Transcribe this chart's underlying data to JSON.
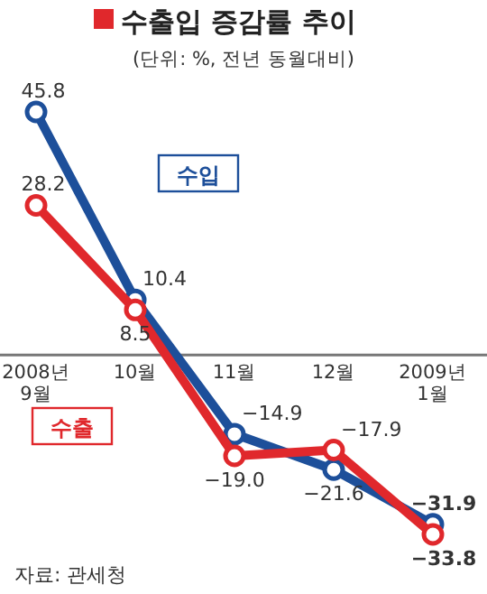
{
  "chart_data": {
    "type": "line",
    "title": "수출입 증감률 추이",
    "subtitle": "(단위: %, 전년 동월대비)",
    "annotations": [
      "자료: 관세청"
    ],
    "categories": [
      "2008년\n9월",
      "10월",
      "11월",
      "12월",
      "2009년\n1월"
    ],
    "series": [
      {
        "name": "수입",
        "color": "#1d4f9a",
        "values": [
          45.8,
          10.4,
          -14.9,
          -21.6,
          -31.9
        ],
        "value_labels": [
          "45.8",
          "10.4",
          "−14.9",
          "−21.6",
          "−31.9"
        ]
      },
      {
        "name": "수출",
        "color": "#e0282c",
        "values": [
          28.2,
          8.5,
          -19.0,
          -17.9,
          -33.8
        ],
        "value_labels": [
          "28.2",
          "8.5",
          "−19.0",
          "−17.9",
          "−33.8"
        ]
      }
    ],
    "marker": "circle",
    "line_style": "solid"
  }
}
